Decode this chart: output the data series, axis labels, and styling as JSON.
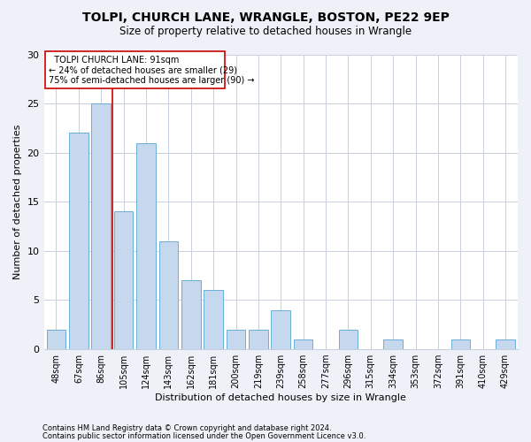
{
  "title": "TOLPI, CHURCH LANE, WRANGLE, BOSTON, PE22 9EP",
  "subtitle": "Size of property relative to detached houses in Wrangle",
  "xlabel": "Distribution of detached houses by size in Wrangle",
  "ylabel": "Number of detached properties",
  "categories": [
    "48sqm",
    "67sqm",
    "86sqm",
    "105sqm",
    "124sqm",
    "143sqm",
    "162sqm",
    "181sqm",
    "200sqm",
    "219sqm",
    "239sqm",
    "258sqm",
    "277sqm",
    "296sqm",
    "315sqm",
    "334sqm",
    "353sqm",
    "372sqm",
    "391sqm",
    "410sqm",
    "429sqm"
  ],
  "values": [
    2,
    22,
    25,
    14,
    21,
    11,
    7,
    6,
    2,
    2,
    4,
    1,
    0,
    2,
    0,
    1,
    0,
    0,
    1,
    0,
    1
  ],
  "bar_color": "#c5d8ed",
  "bar_edge_color": "#6aaed6",
  "marker_line_color": "#cc0000",
  "annotation_line1": "TOLPI CHURCH LANE: 91sqm",
  "annotation_line2": "← 24% of detached houses are smaller (29)",
  "annotation_line3": "75% of semi-detached houses are larger (90) →",
  "annotation_box_color": "#cc0000",
  "ylim": [
    0,
    30
  ],
  "yticks": [
    0,
    5,
    10,
    15,
    20,
    25,
    30
  ],
  "footer1": "Contains HM Land Registry data © Crown copyright and database right 2024.",
  "footer2": "Contains public sector information licensed under the Open Government Licence v3.0.",
  "bg_color": "#eef2f8",
  "plot_bg_color": "#ffffff",
  "grid_color": "#c8d0e0"
}
